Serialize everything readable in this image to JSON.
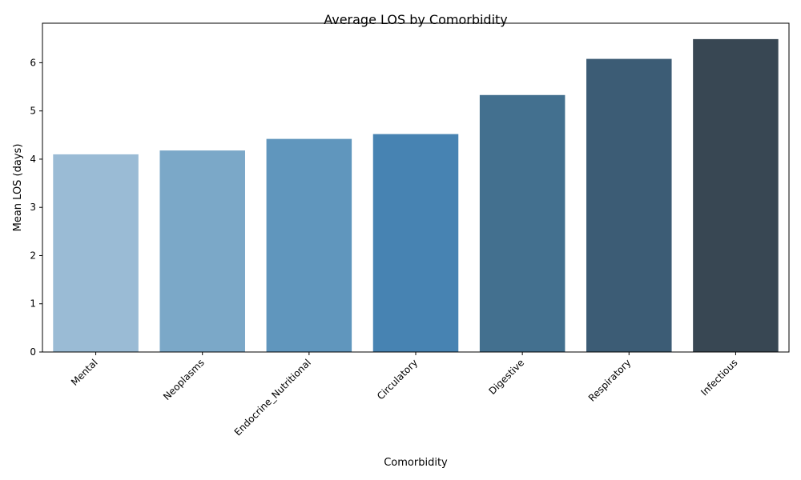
{
  "chart_data": {
    "type": "bar",
    "title": "Average LOS by Comorbidity",
    "xlabel": "Comorbidity",
    "ylabel": "Mean LOS (days)",
    "categories": [
      "Mental",
      "Neoplasms",
      "Endocrine_Nutritional",
      "Circulatory",
      "Digestive",
      "Respiratory",
      "Infectious"
    ],
    "values": [
      4.1,
      4.18,
      4.42,
      4.52,
      5.33,
      6.08,
      6.49
    ],
    "colors": [
      "#9abbd5",
      "#7ba8c8",
      "#6096bd",
      "#4783b2",
      "#43708f",
      "#3c5c75",
      "#384753"
    ],
    "ylim": [
      0,
      6.82
    ],
    "yticks": [
      "0",
      "1",
      "2",
      "3",
      "4",
      "5",
      "6"
    ],
    "grid": false,
    "legend": "none"
  }
}
